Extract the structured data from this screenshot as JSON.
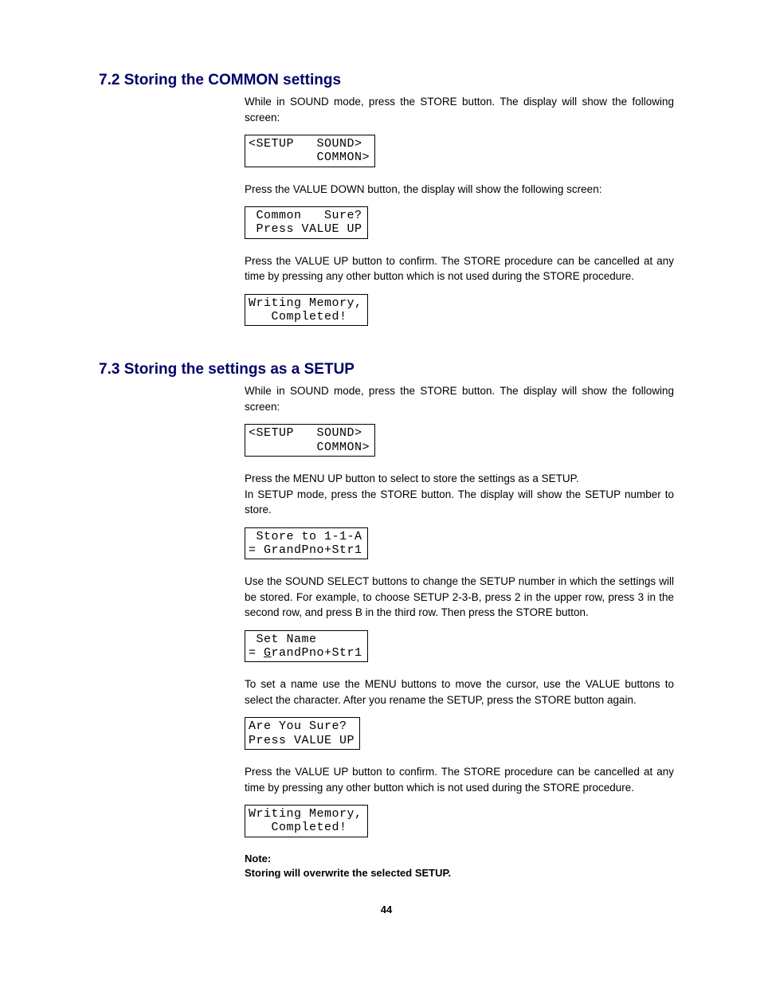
{
  "sec1": {
    "heading": "7.2 Storing the COMMON settings",
    "p1": "While in SOUND mode, press the STORE button. The display will show the following screen:",
    "lcd1": "<SETUP   SOUND>\n         COMMON>",
    "p2": "Press the VALUE DOWN button, the display will show the following screen:",
    "lcd2": " Common   Sure?\n Press VALUE UP",
    "p3": "Press the VALUE UP button to confirm. The STORE procedure can be cancelled at any time by pressing any other button which is not used during the STORE procedure.",
    "lcd3": "Writing Memory,\n   Completed!"
  },
  "sec2": {
    "heading": "7.3 Storing the settings as a SETUP",
    "p1": "While in SOUND mode, press the STORE button. The display will show the following screen:",
    "lcd1": "<SETUP   SOUND>\n         COMMON>",
    "p2a": "Press the MENU UP button to select to store the settings as a SETUP.",
    "p2b": "In SETUP mode, press the STORE button. The display will show the SETUP number to store.",
    "lcd2": " Store to 1-1-A\n= GrandPno+Str1",
    "p3": "Use the SOUND SELECT buttons to change the SETUP number in which the settings will be stored. For example, to choose SETUP 2-3-B, press 2 in the upper row, press 3 in the second row, and press B in the third row. Then press the STORE button.",
    "lcd3_pre": " Set Name\n= ",
    "lcd3_u": "G",
    "lcd3_post": "randPno+Str1",
    "p4": "To set a name use the MENU buttons to move the cursor, use the VALUE buttons to select the character.  After you rename the SETUP, press the STORE button again.",
    "lcd4": "Are You Sure?\nPress VALUE UP",
    "p5": "Press the VALUE UP button to confirm. The STORE procedure can be cancelled at any time by pressing any other button which is not used during the STORE procedure.",
    "lcd5": "Writing Memory,\n   Completed!",
    "note1": "Note:",
    "note2": "Storing will overwrite the selected SETUP."
  },
  "pagenum": "44"
}
